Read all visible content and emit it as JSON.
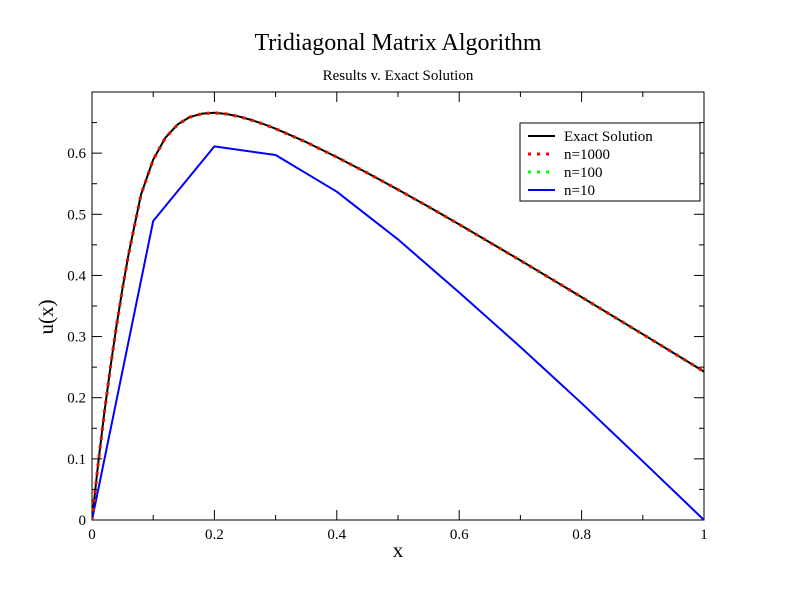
{
  "chart_data": {
    "type": "line",
    "title": "Tridiagonal Matrix Algorithm",
    "subtitle": "Results v. Exact Solution",
    "xlabel": "x",
    "ylabel": "u(x)",
    "xlim": [
      0,
      1
    ],
    "ylim": [
      0,
      0.7
    ],
    "x_ticks": [
      0,
      0.2,
      0.4,
      0.6,
      0.8,
      1
    ],
    "x_tick_labels": [
      "0",
      "0.2",
      "0.4",
      "0.6",
      "0.8",
      "1"
    ],
    "y_ticks": [
      0,
      0.1,
      0.2,
      0.3,
      0.4,
      0.5,
      0.6
    ],
    "y_tick_labels": [
      "0",
      "0.1",
      "0.2",
      "0.3",
      "0.4",
      "0.5",
      "0.6"
    ],
    "grid": false,
    "legend_position": "top-right",
    "series": [
      {
        "name": "Exact Solution",
        "color": "#000000",
        "style": "solid",
        "x": [
          0,
          0.01,
          0.02,
          0.03,
          0.04,
          0.05,
          0.06,
          0.08,
          0.1,
          0.12,
          0.14,
          0.16,
          0.18,
          0.2,
          0.22,
          0.24,
          0.26,
          0.28,
          0.3,
          0.35,
          0.4,
          0.45,
          0.5,
          0.55,
          0.6,
          0.65,
          0.7,
          0.75,
          0.8,
          0.85,
          0.9,
          0.95,
          1
        ],
        "y": [
          0,
          0.0912,
          0.1741,
          0.2494,
          0.3178,
          0.3797,
          0.4359,
          0.5322,
          0.5895,
          0.6253,
          0.647,
          0.6591,
          0.6647,
          0.6659,
          0.664,
          0.6599,
          0.6544,
          0.6476,
          0.6399,
          0.618,
          0.5936,
          0.5676,
          0.5403,
          0.5122,
          0.4834,
          0.4541,
          0.4245,
          0.3946,
          0.3645,
          0.3342,
          0.3038,
          0.2733,
          0.2427
        ]
      },
      {
        "name": "n=1000",
        "color": "#ff0000",
        "style": "dotted",
        "x": [
          0,
          0.01,
          0.02,
          0.03,
          0.04,
          0.05,
          0.06,
          0.08,
          0.1,
          0.12,
          0.14,
          0.16,
          0.18,
          0.2,
          0.22,
          0.24,
          0.26,
          0.28,
          0.3,
          0.35,
          0.4,
          0.45,
          0.5,
          0.55,
          0.6,
          0.65,
          0.7,
          0.75,
          0.8,
          0.85,
          0.9,
          0.95,
          1
        ],
        "y": [
          0,
          0.0912,
          0.1741,
          0.2494,
          0.3178,
          0.3797,
          0.4359,
          0.5322,
          0.5895,
          0.6253,
          0.647,
          0.6591,
          0.6647,
          0.6659,
          0.664,
          0.6599,
          0.6544,
          0.6476,
          0.6399,
          0.618,
          0.5936,
          0.5676,
          0.5403,
          0.5122,
          0.4834,
          0.4541,
          0.4245,
          0.3946,
          0.3645,
          0.3342,
          0.3038,
          0.2733,
          0.2427
        ]
      },
      {
        "name": "n=100",
        "color": "#00ff00",
        "style": "dotted",
        "x": [
          0,
          0.01,
          0.02,
          0.03,
          0.04,
          0.05,
          0.06,
          0.08,
          0.1,
          0.12,
          0.14,
          0.16,
          0.18,
          0.2,
          0.22,
          0.24,
          0.26,
          0.28,
          0.3,
          0.35,
          0.4,
          0.45,
          0.5,
          0.55,
          0.6,
          0.65,
          0.7,
          0.75,
          0.8,
          0.85,
          0.9,
          0.95,
          1
        ],
        "y": [
          0,
          0.0906,
          0.1732,
          0.2483,
          0.3165,
          0.3783,
          0.4345,
          0.531,
          0.5886,
          0.6246,
          0.6465,
          0.6587,
          0.6644,
          0.6656,
          0.6638,
          0.6597,
          0.6542,
          0.6474,
          0.6397,
          0.6178,
          0.5934,
          0.5674,
          0.5401,
          0.512,
          0.4832,
          0.4539,
          0.4243,
          0.3944,
          0.3643,
          0.334,
          0.3036,
          0.2731,
          0.2427
        ]
      },
      {
        "name": "n=10",
        "color": "#0000ff",
        "style": "solid",
        "x": [
          0,
          0.1,
          0.2,
          0.3,
          0.4,
          0.5,
          0.6,
          0.7,
          0.8,
          0.9,
          1
        ],
        "y": [
          0,
          0.489,
          0.611,
          0.597,
          0.537,
          0.459,
          0.372,
          0.283,
          0.191,
          0.096,
          0
        ]
      }
    ]
  }
}
